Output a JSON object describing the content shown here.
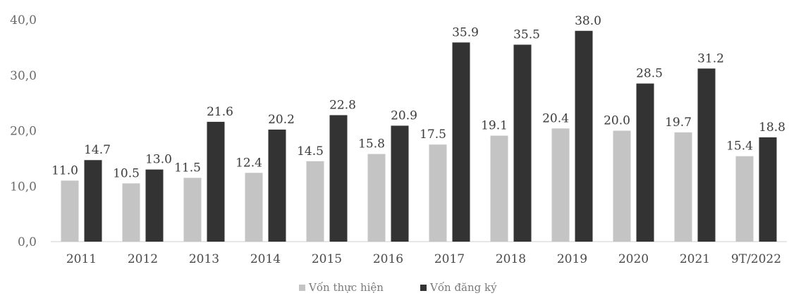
{
  "chart_data": {
    "type": "bar",
    "categories": [
      "2011",
      "2012",
      "2013",
      "2014",
      "2015",
      "2016",
      "2017",
      "2018",
      "2019",
      "2020",
      "2021",
      "9T/2022"
    ],
    "series": [
      {
        "name": "Vốn thực hiện",
        "color": "#c4c4c4",
        "values": [
          11.0,
          10.5,
          11.5,
          12.4,
          14.5,
          15.8,
          17.5,
          19.1,
          20.4,
          20.0,
          19.7,
          15.4
        ],
        "labels": [
          "11.0",
          "10.5",
          "11.5",
          "12.4",
          "14.5",
          "15.8",
          "17.5",
          "19.1",
          "20.4",
          "20.0",
          "19.7",
          "15.4"
        ]
      },
      {
        "name": "Vốn đăng ký",
        "color": "#333333",
        "values": [
          14.7,
          13.0,
          21.6,
          20.2,
          22.8,
          20.9,
          35.9,
          35.5,
          38.0,
          28.5,
          31.2,
          18.8
        ],
        "labels": [
          "14.7",
          "13.0",
          "21.6",
          "20.2",
          "22.8",
          "20.9",
          "35.9",
          "35.5",
          "38.0",
          "28.5",
          "31.2",
          "18.8"
        ]
      }
    ],
    "ylim": [
      0,
      40
    ],
    "yticks": [
      0,
      10,
      20,
      30,
      40
    ],
    "ytick_labels": [
      "0,0",
      "10,0",
      "20,0",
      "30,0",
      "40,0"
    ],
    "title": "",
    "xlabel": "",
    "ylabel": "",
    "grid": false,
    "legend_position": "bottom-center"
  }
}
